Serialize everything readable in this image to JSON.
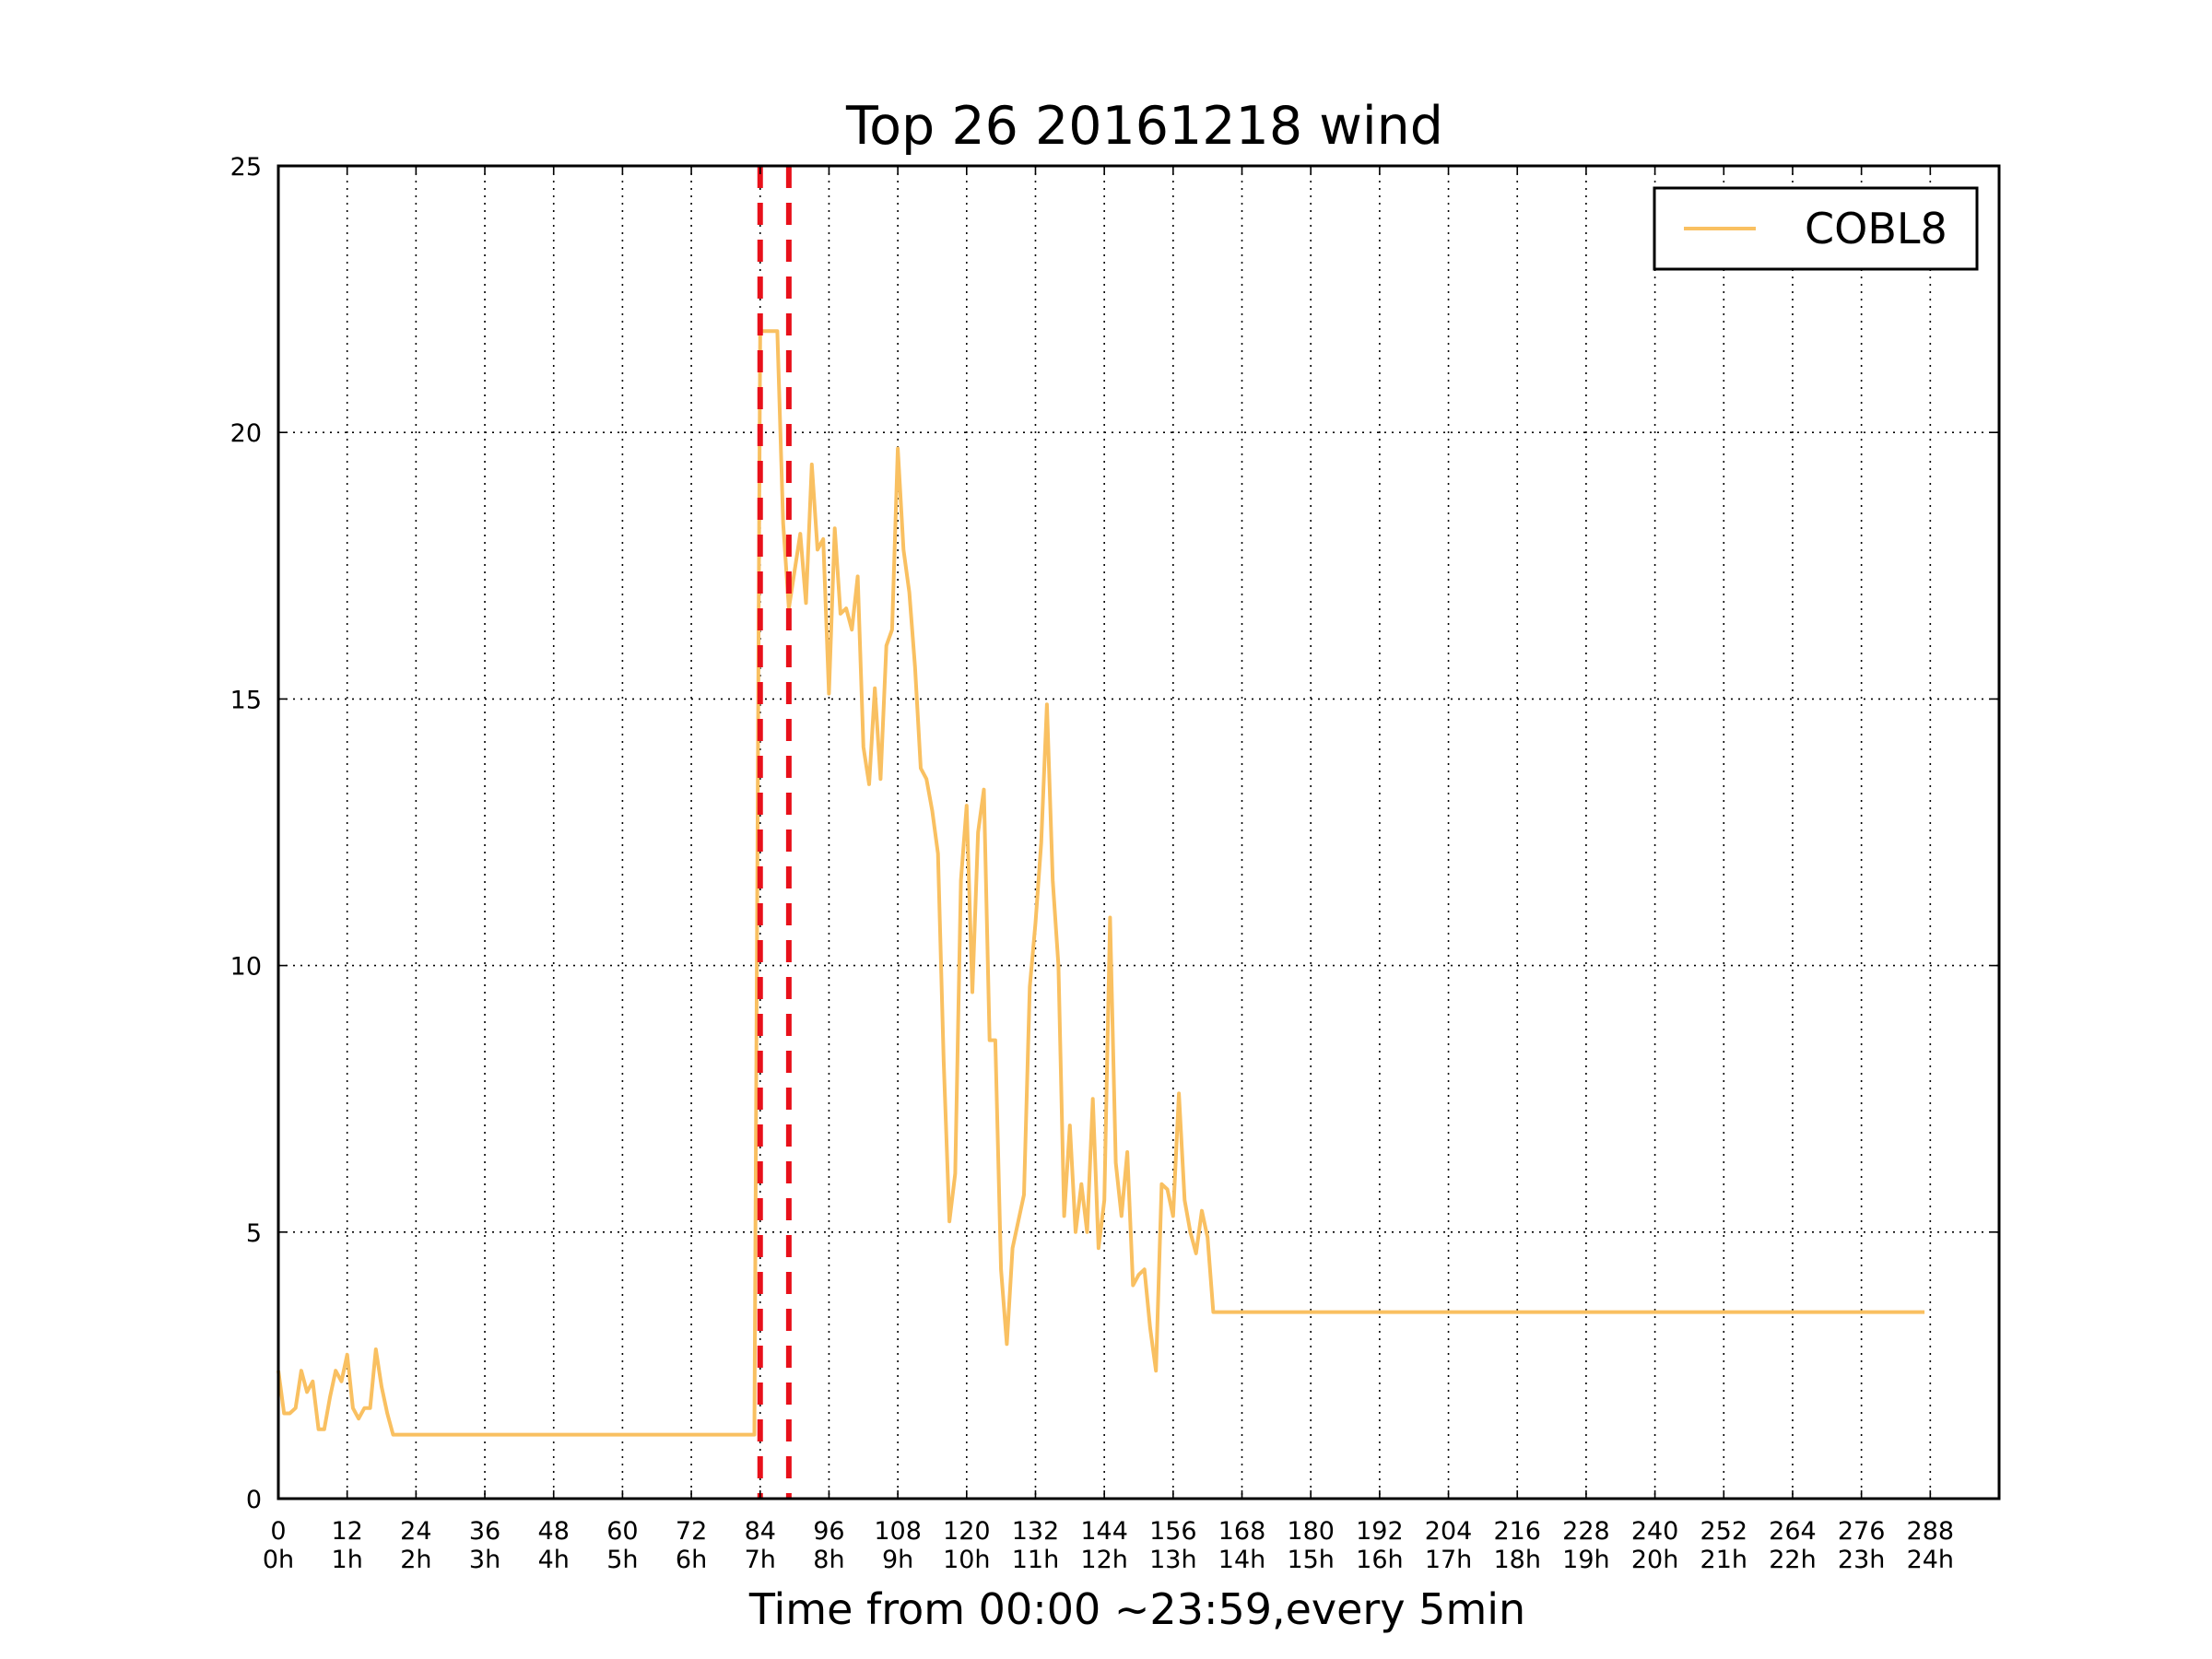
{
  "chart_data": {
    "type": "line",
    "title": "Top 26 20161218 wind",
    "xlabel": "Time from 00:00 ~23:59,every 5min",
    "ylabel": "",
    "xlim": [
      0,
      300
    ],
    "ylim": [
      0,
      25
    ],
    "grid": true,
    "legend_position": "top-right",
    "x_ticks": [
      0,
      12,
      24,
      36,
      48,
      60,
      72,
      84,
      96,
      108,
      120,
      132,
      144,
      156,
      168,
      180,
      192,
      204,
      216,
      228,
      240,
      252,
      264,
      276,
      288
    ],
    "x_tick_labels_top": [
      "0",
      "12",
      "24",
      "36",
      "48",
      "60",
      "72",
      "84",
      "96",
      "108",
      "120",
      "132",
      "144",
      "156",
      "168",
      "180",
      "192",
      "204",
      "216",
      "228",
      "240",
      "252",
      "264",
      "276",
      "288"
    ],
    "x_tick_labels_bottom": [
      "0h",
      "1h",
      "2h",
      "3h",
      "4h",
      "5h",
      "6h",
      "7h",
      "8h",
      "9h",
      "10h",
      "11h",
      "12h",
      "13h",
      "14h",
      "15h",
      "16h",
      "17h",
      "18h",
      "19h",
      "20h",
      "21h",
      "22h",
      "23h",
      "24h"
    ],
    "y_ticks": [
      0,
      5,
      10,
      15,
      20,
      25
    ],
    "y_tick_labels": [
      "0",
      "5",
      "10",
      "15",
      "20",
      "25"
    ],
    "markers": {
      "color": "#e8101a",
      "style": "dashed",
      "x": [
        84,
        89
      ]
    },
    "series": [
      {
        "name": "COBL8",
        "color": "#f9c061",
        "points": [
          [
            0,
            2.4
          ],
          [
            1,
            1.6
          ],
          [
            2,
            1.6
          ],
          [
            3,
            1.7
          ],
          [
            4,
            2.4
          ],
          [
            5,
            2.0
          ],
          [
            6,
            2.2
          ],
          [
            7,
            1.3
          ],
          [
            8,
            1.3
          ],
          [
            9,
            1.9
          ],
          [
            10,
            2.4
          ],
          [
            11,
            2.2
          ],
          [
            12,
            2.7
          ],
          [
            13,
            1.7
          ],
          [
            14,
            1.5
          ],
          [
            15,
            1.7
          ],
          [
            16,
            1.7
          ],
          [
            17,
            2.8
          ],
          [
            18,
            2.1
          ],
          [
            19,
            1.6
          ],
          [
            20,
            1.2
          ],
          [
            21,
            1.2
          ],
          [
            40,
            1.2
          ],
          [
            60,
            1.2
          ],
          [
            83,
            1.2
          ],
          [
            84,
            21.9
          ],
          [
            87,
            21.9
          ],
          [
            88,
            18.3
          ],
          [
            89,
            16.7
          ],
          [
            90,
            17.4
          ],
          [
            91,
            18.1
          ],
          [
            92,
            16.8
          ],
          [
            93,
            19.4
          ],
          [
            94,
            17.8
          ],
          [
            95,
            18.0
          ],
          [
            96,
            15.1
          ],
          [
            97,
            18.2
          ],
          [
            98,
            16.6
          ],
          [
            99,
            16.7
          ],
          [
            100,
            16.3
          ],
          [
            101,
            17.3
          ],
          [
            102,
            14.1
          ],
          [
            103,
            13.4
          ],
          [
            104,
            15.2
          ],
          [
            105,
            13.5
          ],
          [
            106,
            16.0
          ],
          [
            107,
            16.3
          ],
          [
            108,
            19.7
          ],
          [
            109,
            17.8
          ],
          [
            110,
            17.0
          ],
          [
            111,
            15.6
          ],
          [
            112,
            13.7
          ],
          [
            113,
            13.5
          ],
          [
            114,
            12.9
          ],
          [
            115,
            12.1
          ],
          [
            116,
            8.2
          ],
          [
            117,
            5.2
          ],
          [
            118,
            6.1
          ],
          [
            119,
            11.6
          ],
          [
            120,
            13.0
          ],
          [
            121,
            9.5
          ],
          [
            122,
            12.5
          ],
          [
            123,
            13.3
          ],
          [
            124,
            8.6
          ],
          [
            125,
            8.6
          ],
          [
            126,
            4.3
          ],
          [
            127,
            2.9
          ],
          [
            128,
            4.7
          ],
          [
            129,
            5.2
          ],
          [
            130,
            5.7
          ],
          [
            131,
            9.6
          ],
          [
            132,
            10.8
          ],
          [
            133,
            12.3
          ],
          [
            134,
            14.9
          ],
          [
            135,
            11.6
          ],
          [
            136,
            10.0
          ],
          [
            137,
            5.3
          ],
          [
            138,
            7.0
          ],
          [
            139,
            5.0
          ],
          [
            140,
            5.9
          ],
          [
            141,
            5.0
          ],
          [
            142,
            7.5
          ],
          [
            143,
            4.7
          ],
          [
            144,
            5.6
          ],
          [
            145,
            10.9
          ],
          [
            146,
            6.3
          ],
          [
            147,
            5.3
          ],
          [
            148,
            6.5
          ],
          [
            149,
            4.0
          ],
          [
            150,
            4.2
          ],
          [
            151,
            4.3
          ],
          [
            152,
            3.2
          ],
          [
            153,
            2.4
          ],
          [
            154,
            5.9
          ],
          [
            155,
            5.8
          ],
          [
            156,
            5.3
          ],
          [
            157,
            7.6
          ],
          [
            158,
            5.6
          ],
          [
            159,
            5.0
          ],
          [
            160,
            4.6
          ],
          [
            161,
            5.4
          ],
          [
            162,
            4.9
          ],
          [
            163,
            3.5
          ],
          [
            180,
            3.5
          ],
          [
            220,
            3.5
          ],
          [
            260,
            3.5
          ],
          [
            287,
            3.5
          ]
        ]
      }
    ]
  }
}
